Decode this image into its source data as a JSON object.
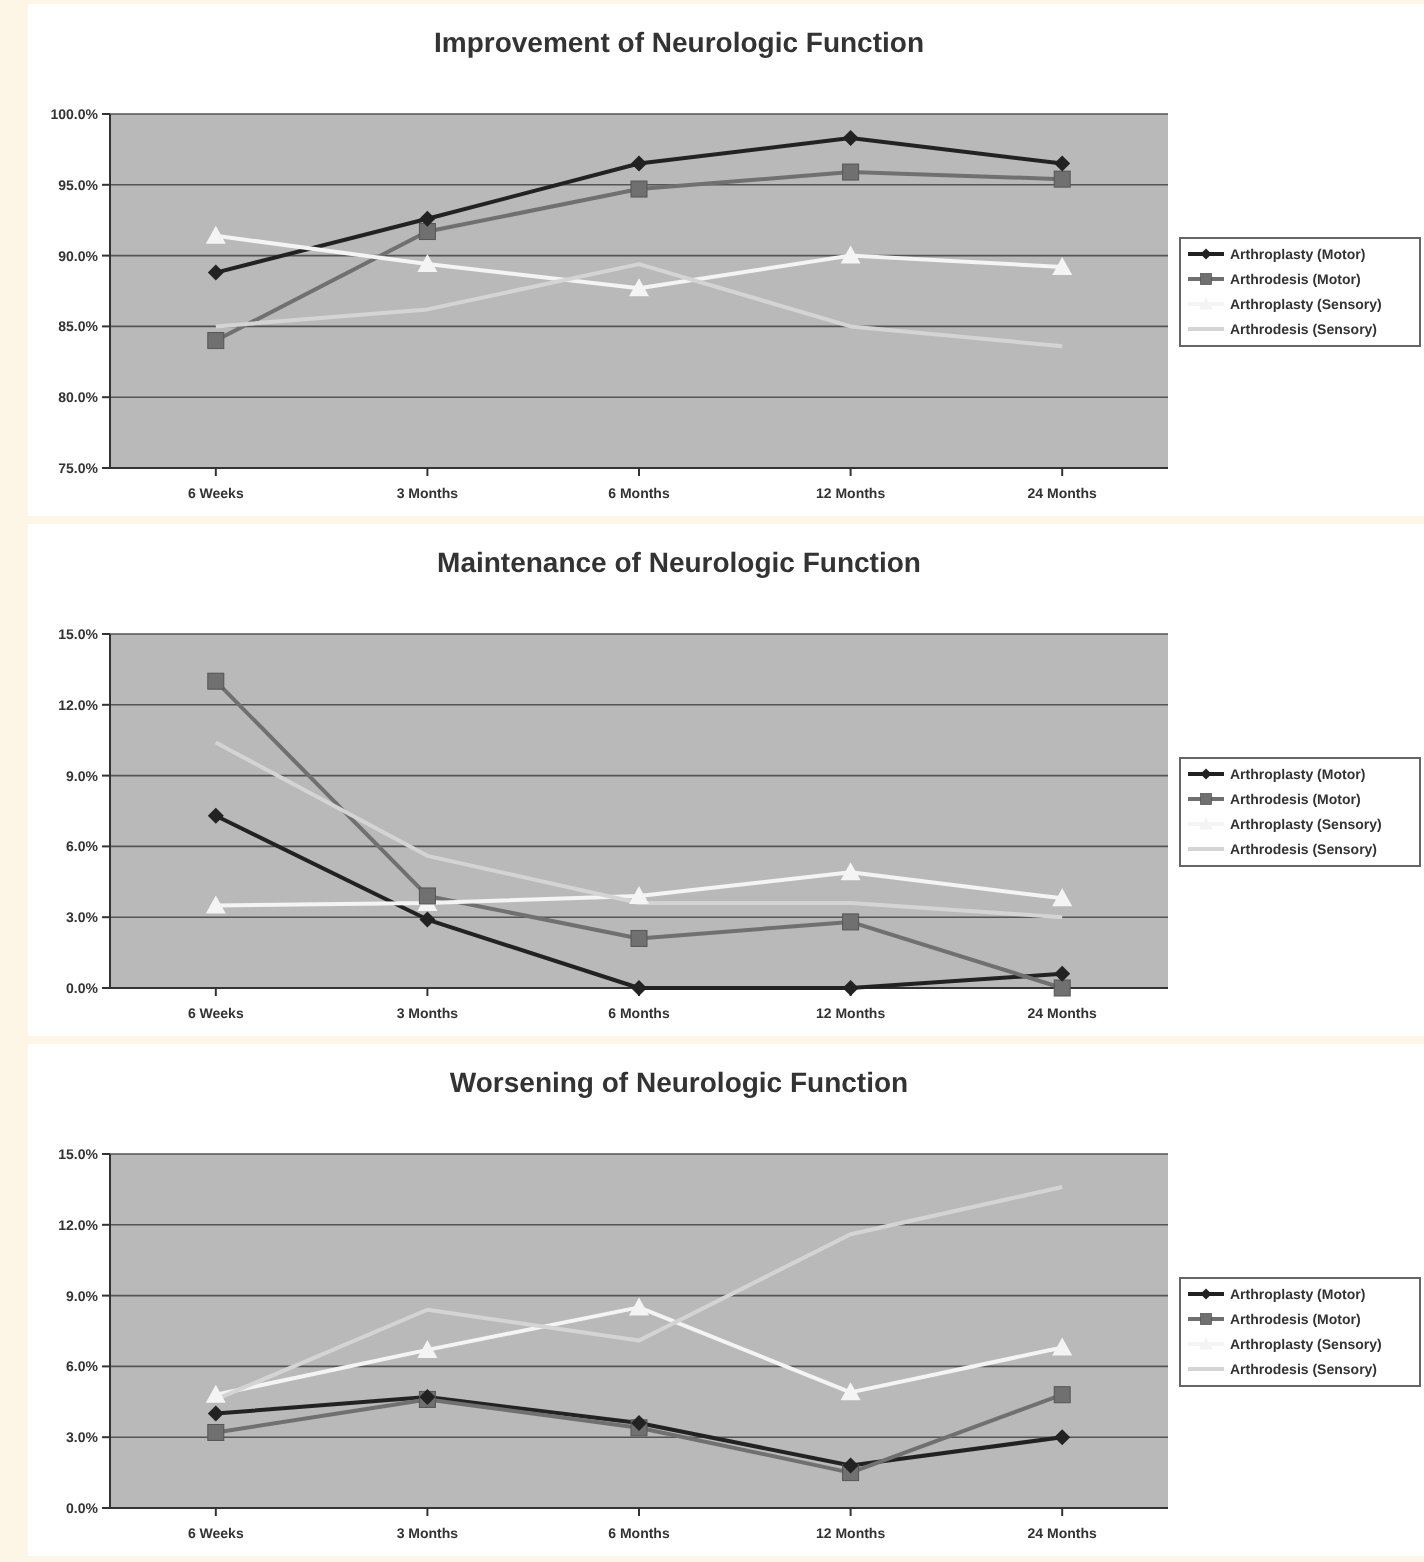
{
  "chart_data": [
    {
      "type": "line",
      "title": "Improvement of Neurologic Function",
      "categories": [
        "6 Weeks",
        "3 Months",
        "6 Months",
        "12 Months",
        "24 Months"
      ],
      "ylim": [
        75,
        100
      ],
      "yticks": [
        {
          "value": 75,
          "label": "75.0%"
        },
        {
          "value": 80,
          "label": "80.0%"
        },
        {
          "value": 85,
          "label": "85.0%"
        },
        {
          "value": 90,
          "label": "90.0%"
        },
        {
          "value": 95,
          "label": "95.0%"
        },
        {
          "value": 100,
          "label": "100.0%"
        }
      ],
      "grid": "y",
      "legend": "right",
      "series": [
        {
          "name": "Arthroplasty (Motor)",
          "color": "#222222",
          "marker": "diamond",
          "values": [
            88.8,
            92.6,
            96.5,
            98.3,
            96.5
          ]
        },
        {
          "name": "Arthrodesis (Motor)",
          "color": "#707070",
          "marker": "square",
          "values": [
            84.0,
            91.7,
            94.7,
            95.9,
            95.4
          ]
        },
        {
          "name": "Arthroplasty (Sensory)",
          "color": "#f4f4f4",
          "marker": "triangle",
          "values": [
            91.4,
            89.4,
            87.7,
            90.0,
            89.2
          ]
        },
        {
          "name": "Arthrodesis (Sensory)",
          "color": "#d4d4d4",
          "marker": "none",
          "values": [
            85.0,
            86.2,
            89.4,
            85.0,
            83.6
          ]
        }
      ]
    },
    {
      "type": "line",
      "title": "Maintenance of Neurologic Function",
      "categories": [
        "6 Weeks",
        "3 Months",
        "6 Months",
        "12 Months",
        "24 Months"
      ],
      "ylim": [
        0,
        15
      ],
      "yticks": [
        {
          "value": 0,
          "label": "0.0%"
        },
        {
          "value": 3,
          "label": "3.0%"
        },
        {
          "value": 6,
          "label": "6.0%"
        },
        {
          "value": 9,
          "label": "9.0%"
        },
        {
          "value": 12,
          "label": "12.0%"
        },
        {
          "value": 15,
          "label": "15.0%"
        }
      ],
      "grid": "y",
      "legend": "right",
      "series": [
        {
          "name": "Arthroplasty (Motor)",
          "color": "#222222",
          "marker": "diamond",
          "values": [
            7.3,
            2.9,
            0.0,
            0.0,
            0.6
          ]
        },
        {
          "name": "Arthrodesis (Motor)",
          "color": "#707070",
          "marker": "square",
          "values": [
            13.0,
            3.9,
            2.1,
            2.8,
            0.0
          ]
        },
        {
          "name": "Arthroplasty (Sensory)",
          "color": "#f4f4f4",
          "marker": "triangle",
          "values": [
            3.5,
            3.6,
            3.9,
            4.9,
            3.8
          ]
        },
        {
          "name": "Arthrodesis (Sensory)",
          "color": "#d4d4d4",
          "marker": "none",
          "values": [
            10.4,
            5.6,
            3.6,
            3.6,
            3.0
          ]
        }
      ]
    },
    {
      "type": "line",
      "title": "Worsening of Neurologic Function",
      "categories": [
        "6 Weeks",
        "3 Months",
        "6 Months",
        "12 Months",
        "24 Months"
      ],
      "ylim": [
        0,
        15
      ],
      "yticks": [
        {
          "value": 0,
          "label": "0.0%"
        },
        {
          "value": 3,
          "label": "3.0%"
        },
        {
          "value": 6,
          "label": "6.0%"
        },
        {
          "value": 9,
          "label": "9.0%"
        },
        {
          "value": 12,
          "label": "12.0%"
        },
        {
          "value": 15,
          "label": "15.0%"
        }
      ],
      "grid": "y",
      "legend": "right",
      "series": [
        {
          "name": "Arthroplasty (Motor)",
          "color": "#222222",
          "marker": "diamond",
          "values": [
            4.0,
            4.7,
            3.6,
            1.8,
            3.0
          ]
        },
        {
          "name": "Arthrodesis (Motor)",
          "color": "#707070",
          "marker": "square",
          "values": [
            3.2,
            4.6,
            3.4,
            1.5,
            4.8
          ]
        },
        {
          "name": "Arthroplasty (Sensory)",
          "color": "#f4f4f4",
          "marker": "triangle",
          "values": [
            4.8,
            6.7,
            8.5,
            4.9,
            6.8
          ]
        },
        {
          "name": "Arthrodesis (Sensory)",
          "color": "#d4d4d4",
          "marker": "none",
          "values": [
            4.6,
            8.4,
            7.1,
            11.6,
            13.6
          ]
        }
      ]
    }
  ]
}
